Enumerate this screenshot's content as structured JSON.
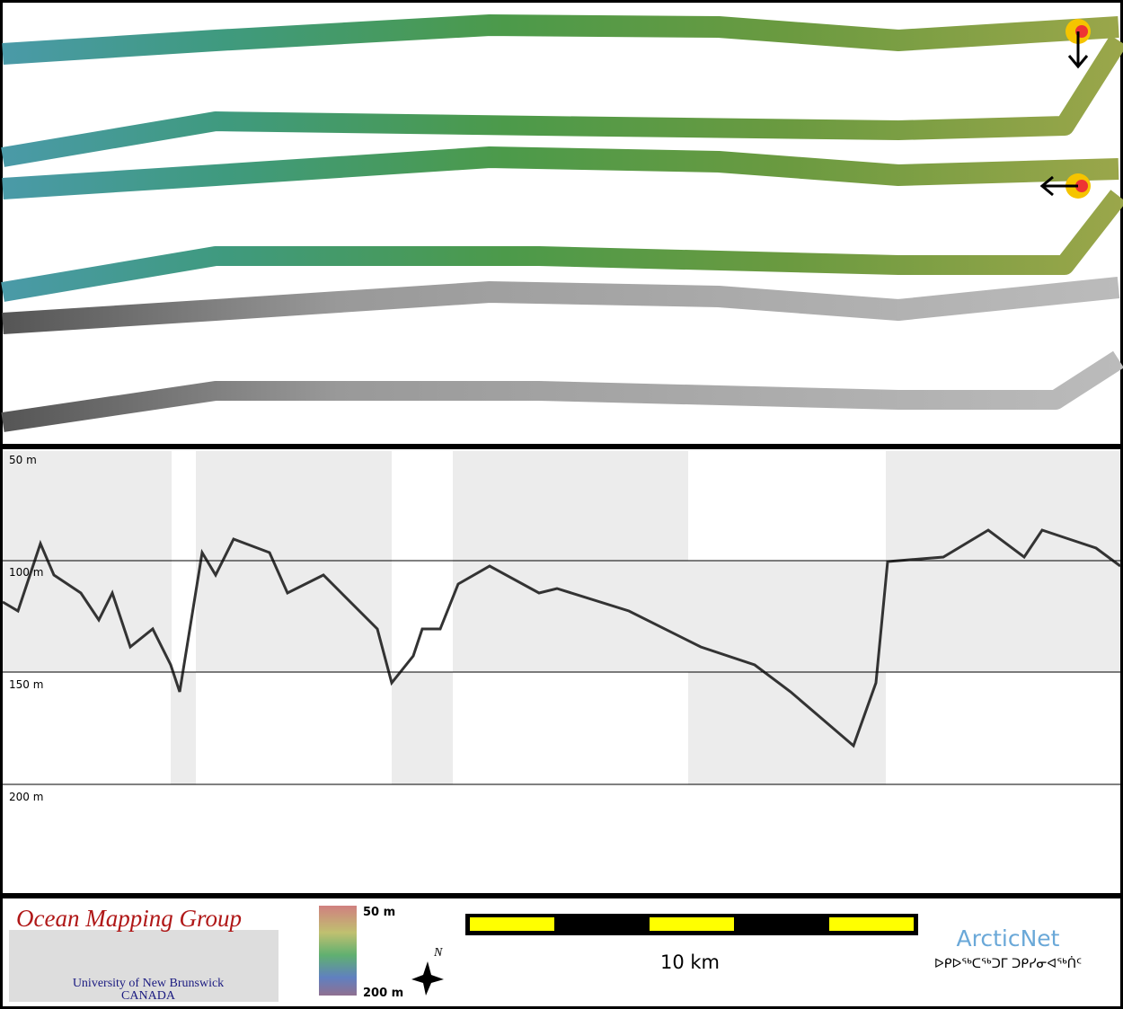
{
  "profile": {
    "depth_labels": [
      "50 m",
      "100 m",
      "150 m",
      "200 m"
    ]
  },
  "footer": {
    "logo_title": "Ocean Mapping Group",
    "logo_university": "University of New Brunswick",
    "logo_country": "CANADA",
    "colorbar_top": "50 m",
    "colorbar_bottom": "200 m",
    "compass": "N",
    "scale_label": "10 km",
    "partner": "ArcticNet",
    "partner_syllabics": "ᐅᑭᐅᖅᑕᖅᑐᒥ ᑐᑭᓯᓂᐊᖅᑏᑦ"
  }
}
